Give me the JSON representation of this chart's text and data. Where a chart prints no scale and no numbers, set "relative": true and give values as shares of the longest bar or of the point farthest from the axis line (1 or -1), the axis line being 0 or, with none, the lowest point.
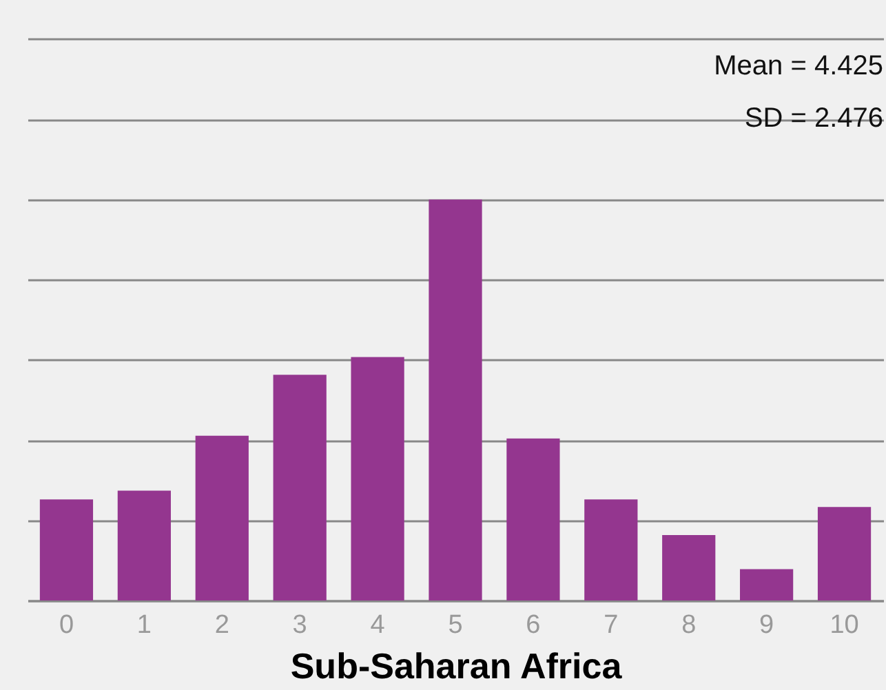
{
  "chart_data": {
    "type": "bar",
    "relative": true,
    "xlabel": "Sub-Saharan Africa",
    "categories": [
      "0",
      "1",
      "2",
      "3",
      "4",
      "5",
      "6",
      "7",
      "8",
      "9",
      "10"
    ],
    "values": [
      0.252,
      0.274,
      0.411,
      0.563,
      0.607,
      1,
      0.404,
      0.252,
      0.163,
      0.078,
      0.233
    ],
    "color": "#94368f",
    "grid": "y",
    "annotations": [
      "Mean = 4.425",
      "SD = 2.476"
    ]
  }
}
